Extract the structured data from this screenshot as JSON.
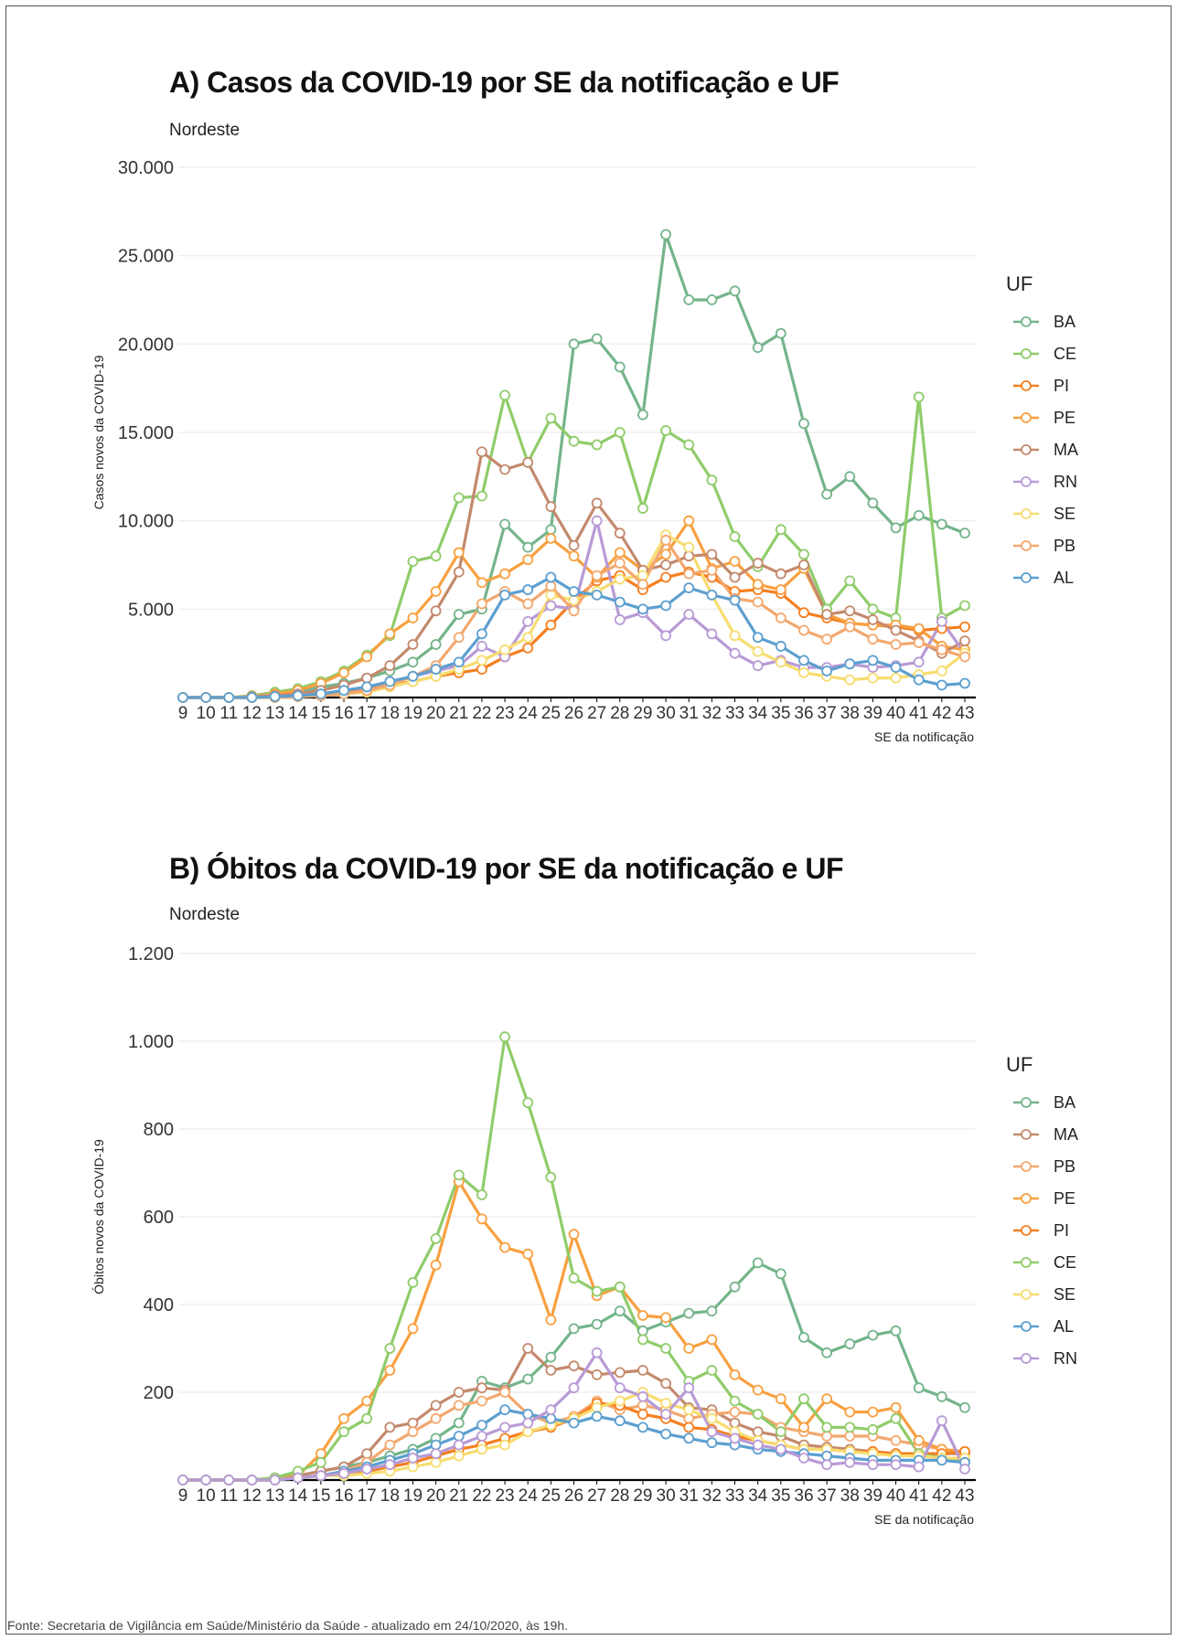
{
  "footer": "Fonte: Secretaria de Vigilância em Saúde/Ministério da Saúde - atualizado em 24/10/2020, às 19h.",
  "chart_data": [
    {
      "type": "line",
      "title": "A) Casos da COVID-19 por SE da notificação e UF",
      "subtitle": "Nordeste",
      "xlabel": "SE da notificação",
      "ylabel": "Casos novos da COVID-19",
      "x": [
        9,
        10,
        11,
        12,
        13,
        14,
        15,
        16,
        17,
        18,
        19,
        20,
        21,
        22,
        23,
        24,
        25,
        26,
        27,
        28,
        29,
        30,
        31,
        32,
        33,
        34,
        35,
        36,
        37,
        38,
        39,
        40,
        41,
        42,
        43
      ],
      "ylim": [
        0,
        30000
      ],
      "yticks": [
        5000,
        10000,
        15000,
        20000,
        25000,
        30000
      ],
      "ytick_labels": [
        "5.000",
        "10.000",
        "15.000",
        "20.000",
        "25.000",
        "30.000"
      ],
      "grid": true,
      "legend_title": "UF",
      "legend_position": "right",
      "series": [
        {
          "name": "BA",
          "color": "#74b48b",
          "values": [
            0,
            0,
            0,
            50,
            150,
            300,
            600,
            800,
            1100,
            1500,
            2000,
            3000,
            4700,
            5000,
            9800,
            8500,
            9500,
            20000,
            20300,
            18700,
            16000,
            26200,
            22500,
            22500,
            23000,
            19800,
            20600,
            15500,
            11500,
            12500,
            11000,
            9600,
            10300,
            9800,
            9300
          ]
        },
        {
          "name": "CE",
          "color": "#8fcc6a",
          "values": [
            0,
            0,
            0,
            100,
            300,
            500,
            900,
            1500,
            2400,
            3500,
            7700,
            8000,
            11300,
            11400,
            17100,
            13300,
            15800,
            14500,
            14300,
            15000,
            10700,
            15100,
            14300,
            12300,
            9100,
            7400,
            9500,
            8100,
            5000,
            6600,
            5000,
            4500,
            17000,
            4500,
            5200
          ]
        },
        {
          "name": "PI",
          "color": "#f57f20",
          "values": [
            0,
            0,
            0,
            0,
            50,
            100,
            200,
            300,
            500,
            700,
            900,
            1200,
            1400,
            1600,
            2300,
            2800,
            4100,
            5500,
            6600,
            6900,
            6100,
            6800,
            7100,
            6800,
            6000,
            6100,
            5900,
            4800,
            4500,
            4200,
            4100,
            4000,
            3800,
            3900,
            4000
          ]
        },
        {
          "name": "PE",
          "color": "#f8a040",
          "values": [
            0,
            0,
            0,
            50,
            200,
            400,
            800,
            1400,
            2300,
            3600,
            4500,
            6000,
            8200,
            6500,
            7000,
            7800,
            9000,
            8000,
            6800,
            8200,
            7200,
            8100,
            10000,
            7300,
            7700,
            6400,
            6100,
            7300,
            4700,
            4200,
            4100,
            4100,
            3900,
            2900,
            2700
          ]
        },
        {
          "name": "MA",
          "color": "#c4896d",
          "values": [
            0,
            0,
            0,
            50,
            100,
            200,
            400,
            700,
            1100,
            1800,
            3000,
            4900,
            7100,
            13900,
            12900,
            13300,
            10800,
            8600,
            11000,
            9300,
            7200,
            7500,
            8000,
            8100,
            6800,
            7600,
            7000,
            7500,
            4700,
            4900,
            4400,
            3800,
            3200,
            2500,
            3200
          ]
        },
        {
          "name": "RN",
          "color": "#b89ad6",
          "values": [
            0,
            0,
            0,
            0,
            50,
            100,
            200,
            400,
            600,
            900,
            1200,
            1500,
            1800,
            2900,
            2300,
            4300,
            5200,
            5000,
            10000,
            4400,
            4800,
            3500,
            4700,
            3600,
            2500,
            1800,
            2100,
            1700,
            1700,
            1900,
            1700,
            1800,
            2000,
            4300,
            2500
          ]
        },
        {
          "name": "SE",
          "color": "#f7dc6f",
          "values": [
            0,
            0,
            0,
            0,
            0,
            50,
            100,
            200,
            300,
            600,
            900,
            1200,
            1600,
            2100,
            2700,
            3400,
            5800,
            5500,
            6000,
            6700,
            6900,
            9200,
            8500,
            5800,
            3500,
            2600,
            2000,
            1400,
            1200,
            1000,
            1100,
            1100,
            1300,
            1500,
            2500
          ]
        },
        {
          "name": "PB",
          "color": "#f3a86f",
          "values": [
            0,
            0,
            0,
            0,
            0,
            50,
            100,
            200,
            400,
            700,
            1200,
            1800,
            3400,
            5300,
            6000,
            5300,
            6300,
            4900,
            6900,
            7600,
            6400,
            8900,
            7000,
            7200,
            5600,
            5400,
            4500,
            3800,
            3300,
            4000,
            3300,
            3000,
            3100,
            2700,
            2300
          ]
        },
        {
          "name": "AL",
          "color": "#5c9fd0",
          "values": [
            0,
            0,
            0,
            0,
            50,
            100,
            200,
            400,
            600,
            900,
            1200,
            1600,
            2000,
            3600,
            5800,
            6100,
            6800,
            6000,
            5800,
            5400,
            5000,
            5200,
            6200,
            5800,
            5500,
            3400,
            2900,
            2100,
            1500,
            1900,
            2100,
            1700,
            1000,
            700,
            800
          ]
        }
      ]
    },
    {
      "type": "line",
      "title": "B) Óbitos da COVID-19 por SE da notificação e UF",
      "subtitle": "Nordeste",
      "xlabel": "SE da notificação",
      "ylabel": "Óbitos novos da COVID-19",
      "x": [
        9,
        10,
        11,
        12,
        13,
        14,
        15,
        16,
        17,
        18,
        19,
        20,
        21,
        22,
        23,
        24,
        25,
        26,
        27,
        28,
        29,
        30,
        31,
        32,
        33,
        34,
        35,
        36,
        37,
        38,
        39,
        40,
        41,
        42,
        43
      ],
      "ylim": [
        0,
        1200
      ],
      "yticks": [
        200,
        400,
        600,
        800,
        1000,
        1200
      ],
      "ytick_labels": [
        "200",
        "400",
        "600",
        "800",
        "1.000",
        "1.200"
      ],
      "grid": true,
      "legend_title": "UF",
      "legend_position": "right",
      "series": [
        {
          "name": "BA",
          "color": "#74b48b",
          "values": [
            0,
            0,
            0,
            0,
            5,
            10,
            20,
            30,
            40,
            55,
            70,
            95,
            130,
            225,
            210,
            230,
            280,
            345,
            355,
            385,
            340,
            360,
            380,
            385,
            440,
            495,
            470,
            325,
            290,
            310,
            330,
            340,
            210,
            190,
            165
          ]
        },
        {
          "name": "MA",
          "color": "#c4896d",
          "values": [
            0,
            0,
            0,
            0,
            5,
            10,
            20,
            30,
            60,
            120,
            130,
            170,
            200,
            210,
            205,
            300,
            250,
            260,
            240,
            245,
            250,
            220,
            165,
            160,
            130,
            110,
            100,
            80,
            75,
            70,
            65,
            60,
            60,
            60,
            60
          ]
        },
        {
          "name": "PB",
          "color": "#f3a86f",
          "values": [
            0,
            0,
            0,
            0,
            0,
            5,
            10,
            20,
            40,
            80,
            110,
            140,
            170,
            180,
            200,
            150,
            130,
            145,
            180,
            160,
            170,
            160,
            140,
            150,
            155,
            150,
            120,
            110,
            100,
            100,
            100,
            90,
            80,
            70,
            60
          ]
        },
        {
          "name": "PE",
          "color": "#f8a040",
          "values": [
            0,
            0,
            0,
            0,
            0,
            10,
            60,
            140,
            180,
            250,
            345,
            490,
            680,
            595,
            530,
            515,
            365,
            560,
            420,
            440,
            375,
            370,
            300,
            320,
            240,
            205,
            185,
            120,
            185,
            155,
            155,
            165,
            90,
            70,
            65
          ]
        },
        {
          "name": "PI",
          "color": "#f57f20",
          "values": [
            0,
            0,
            0,
            0,
            0,
            5,
            10,
            15,
            20,
            30,
            40,
            55,
            70,
            80,
            95,
            110,
            120,
            140,
            175,
            170,
            150,
            140,
            120,
            115,
            100,
            90,
            80,
            70,
            70,
            65,
            65,
            60,
            60,
            60,
            65
          ]
        },
        {
          "name": "CE",
          "color": "#8fcc6a",
          "values": [
            0,
            0,
            0,
            0,
            5,
            20,
            40,
            110,
            140,
            300,
            450,
            550,
            695,
            650,
            1010,
            860,
            690,
            460,
            430,
            440,
            320,
            300,
            225,
            250,
            180,
            150,
            110,
            185,
            120,
            120,
            115,
            140,
            60,
            50,
            45
          ]
        },
        {
          "name": "SE",
          "color": "#f7dc6f",
          "values": [
            0,
            0,
            0,
            0,
            0,
            5,
            10,
            10,
            15,
            20,
            30,
            40,
            55,
            70,
            80,
            110,
            125,
            140,
            165,
            180,
            200,
            175,
            160,
            140,
            110,
            90,
            80,
            70,
            70,
            65,
            60,
            55,
            55,
            50,
            50
          ]
        },
        {
          "name": "AL",
          "color": "#5c9fd0",
          "values": [
            0,
            0,
            0,
            0,
            0,
            5,
            10,
            20,
            30,
            45,
            60,
            80,
            100,
            125,
            160,
            150,
            140,
            130,
            145,
            135,
            120,
            105,
            95,
            85,
            80,
            70,
            65,
            60,
            55,
            50,
            45,
            45,
            45,
            45,
            40
          ]
        },
        {
          "name": "RN",
          "color": "#b89ad6",
          "values": [
            0,
            0,
            0,
            0,
            0,
            5,
            10,
            15,
            25,
            35,
            50,
            60,
            80,
            100,
            120,
            130,
            160,
            210,
            290,
            210,
            190,
            150,
            210,
            110,
            95,
            80,
            70,
            50,
            35,
            40,
            35,
            35,
            30,
            135,
            25
          ]
        }
      ]
    }
  ]
}
